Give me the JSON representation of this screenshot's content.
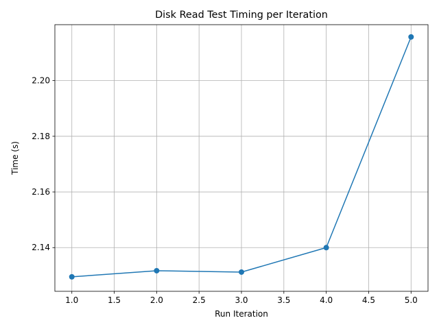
{
  "chart_data": {
    "type": "line",
    "title": "Disk Read Test Timing per Iteration",
    "xlabel": "Run Iteration",
    "ylabel": "Time (s)",
    "x": [
      1.0,
      2.0,
      3.0,
      4.0,
      5.0
    ],
    "series": [
      {
        "values": [
          2.1295,
          2.1317,
          2.1312,
          2.14,
          2.2157
        ],
        "color": "#1f77b4",
        "marker": "circle"
      }
    ],
    "xlim": [
      0.8,
      5.2
    ],
    "ylim": [
      2.1243,
      2.2201
    ],
    "xticks": [
      1.0,
      1.5,
      2.0,
      2.5,
      3.0,
      3.5,
      4.0,
      4.5,
      5.0
    ],
    "xtick_labels": [
      "1.0",
      "1.5",
      "2.0",
      "2.5",
      "3.0",
      "3.5",
      "4.0",
      "4.5",
      "5.0"
    ],
    "yticks": [
      2.14,
      2.16,
      2.18,
      2.2
    ],
    "ytick_labels": [
      "2.14",
      "2.16",
      "2.18",
      "2.20"
    ],
    "grid": true,
    "grid_color": "#b0b0b0",
    "legend": false
  }
}
